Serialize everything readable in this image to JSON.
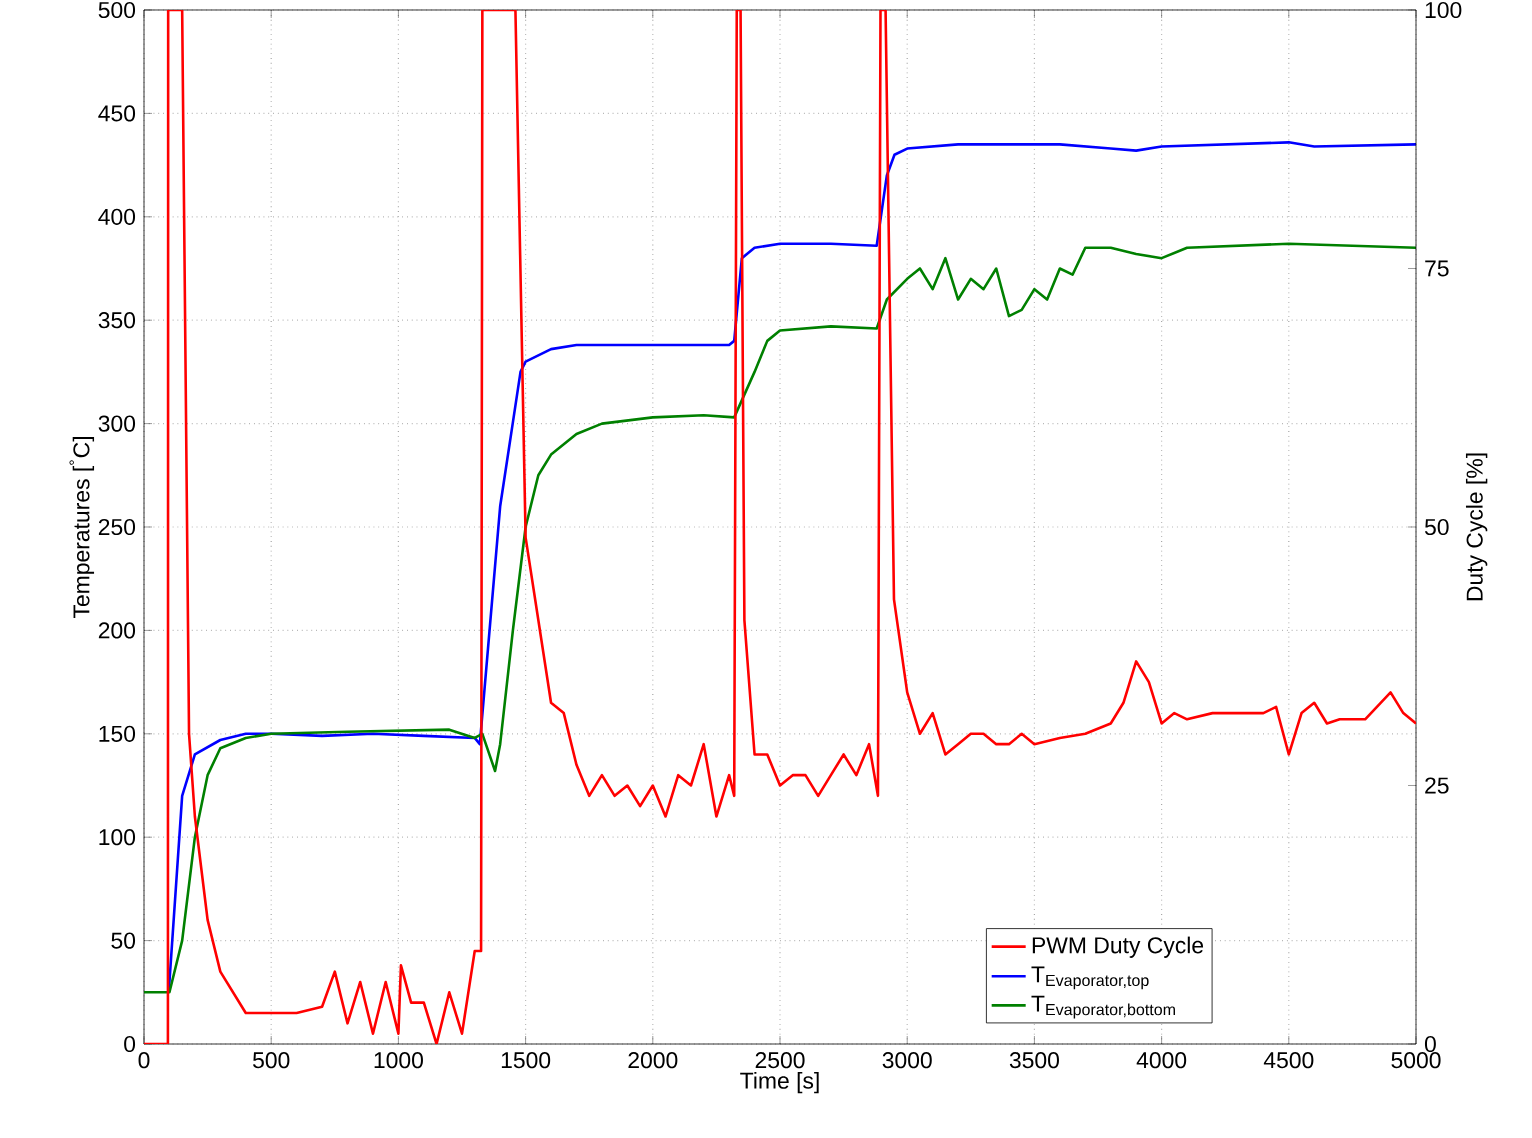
{
  "chart_data": {
    "type": "line",
    "xlabel": "Time [s]",
    "ylabel": "Temperatures [$^{°}$C]",
    "y2label": "Duty Cycle [%]",
    "xlim": [
      0,
      5000
    ],
    "xticks": [
      0,
      500,
      1000,
      1500,
      2000,
      2500,
      3000,
      3500,
      4000,
      4500,
      5000
    ],
    "ylim": [
      0,
      500
    ],
    "yticks": [
      0,
      50,
      100,
      150,
      200,
      250,
      300,
      350,
      400,
      450,
      500
    ],
    "y2lim": [
      0,
      100
    ],
    "y2ticks": [
      0,
      25,
      50,
      75,
      100
    ],
    "grid": true,
    "legend": "bottom right",
    "line_style": "solid",
    "marker": "none",
    "series": [
      {
        "name": "PWM Duty Cycle",
        "color": "#ff0000",
        "axis": "y2",
        "x": [
          0,
          94,
          95,
          150,
          177,
          200,
          250,
          300,
          350,
          400,
          500,
          600,
          700,
          750,
          800,
          850,
          900,
          950,
          1000,
          1010,
          1050,
          1100,
          1150,
          1200,
          1250,
          1300,
          1325,
          1330,
          1460,
          1500,
          1550,
          1600,
          1650,
          1700,
          1750,
          1800,
          1850,
          1900,
          1950,
          2000,
          2050,
          2100,
          2150,
          2200,
          2250,
          2300,
          2320,
          2330,
          2345,
          2360,
          2400,
          2450,
          2500,
          2550,
          2600,
          2650,
          2700,
          2750,
          2800,
          2850,
          2885,
          2895,
          2915,
          2948,
          3000,
          3050,
          3100,
          3150,
          3200,
          3250,
          3300,
          3350,
          3400,
          3450,
          3500,
          3600,
          3700,
          3800,
          3850,
          3900,
          3950,
          4000,
          4050,
          4100,
          4200,
          4300,
          4400,
          4450,
          4500,
          4550,
          4600,
          4650,
          4700,
          4800,
          4900,
          4950,
          5000
        ],
        "values": [
          0,
          0,
          100,
          100,
          30,
          22,
          12,
          7,
          5,
          3,
          3,
          3,
          3.6,
          7,
          2,
          6,
          1,
          6,
          1,
          7.6,
          4,
          4,
          0,
          5,
          1,
          9,
          9,
          100,
          100,
          49,
          41,
          33,
          32,
          27,
          24,
          26,
          24,
          25,
          23,
          25,
          22,
          26,
          25,
          29,
          22,
          26,
          24,
          100,
          100,
          41,
          28,
          28,
          25,
          26,
          26,
          24,
          26,
          28,
          26,
          29,
          24,
          100,
          100,
          43,
          34,
          30,
          32,
          28,
          29,
          30,
          30,
          29,
          29,
          30,
          29,
          29.6,
          30,
          31,
          33,
          37,
          35,
          31,
          32,
          31.4,
          32,
          32,
          32,
          32.6,
          28,
          32,
          33,
          31,
          31.4,
          31.4,
          34,
          32,
          31
        ]
      },
      {
        "name": "\\text{T}_{\\text{Evaporator,top}}",
        "color": "#0000ff",
        "x": [
          95,
          100,
          150,
          200,
          300,
          400,
          500,
          700,
          900,
          1100,
          1300,
          1320,
          1400,
          1480,
          1500,
          1600,
          1700,
          1800,
          2000,
          2200,
          2300,
          2320,
          2350,
          2400,
          2500,
          2700,
          2880,
          2920,
          2950,
          3000,
          3200,
          3600,
          3800,
          3900,
          4000,
          4500,
          4600,
          5000
        ],
        "values": [
          25,
          30,
          120,
          140,
          147,
          150,
          150,
          149,
          150,
          149,
          148,
          145,
          260,
          325,
          330,
          336,
          338,
          338,
          338,
          338,
          338,
          340,
          380,
          385,
          387,
          387,
          386,
          420,
          430,
          433,
          435,
          435,
          433,
          432,
          434,
          436,
          434,
          435
        ]
      },
      {
        "name": "\\text{T}_{\\text{Evaporator,bottom}}",
        "color": "#008000",
        "x": [
          0,
          100,
          150,
          200,
          250,
          300,
          400,
          500,
          800,
          1200,
          1300,
          1330,
          1380,
          1400,
          1450,
          1500,
          1550,
          1600,
          1700,
          1800,
          2000,
          2200,
          2320,
          2400,
          2450,
          2500,
          2700,
          2880,
          2920,
          3000,
          3050,
          3100,
          3150,
          3200,
          3250,
          3300,
          3350,
          3400,
          3450,
          3500,
          3550,
          3600,
          3650,
          3700,
          3800,
          3900,
          4000,
          4100,
          4500,
          5000
        ],
        "values": [
          25,
          25,
          50,
          100,
          130,
          143,
          148,
          150,
          151,
          152,
          148,
          150,
          132,
          145,
          200,
          250,
          275,
          285,
          295,
          300,
          303,
          304,
          303,
          325,
          340,
          345,
          347,
          346,
          360,
          370,
          375,
          365,
          380,
          360,
          370,
          365,
          375,
          352,
          355,
          365,
          360,
          375,
          372,
          385,
          385,
          382,
          380,
          385,
          387,
          385
        ]
      }
    ]
  }
}
